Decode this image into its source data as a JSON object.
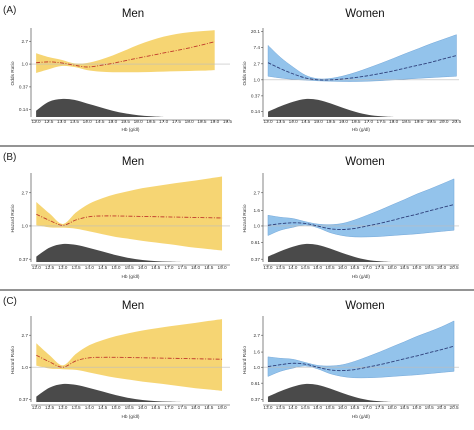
{
  "chart_data": [
    {
      "type": "line",
      "panel": "(A)",
      "title": "Men",
      "xlabel": "Hb (g/dl)",
      "ylabel": "Odds Ratio",
      "xlim": [
        11.8,
        19.6
      ],
      "ylim": [
        0.1,
        4.4
      ],
      "log_y": true,
      "yticks": [
        0.14,
        0.37,
        1.0,
        2.7
      ],
      "yticklabels": [
        "0.14",
        "0.37",
        "1.0",
        "2.7"
      ],
      "xticks": [
        12.0,
        12.5,
        13.0,
        13.5,
        14.0,
        14.5,
        15.0,
        15.5,
        16.0,
        16.5,
        17.0,
        17.5,
        18.0,
        18.5,
        19.0,
        19.5
      ],
      "xticklabels": [
        "12.0",
        "12.5",
        "13.0",
        "13.5",
        "14.0",
        "14.5",
        "15.0",
        "15.5",
        "16.0",
        "16.5",
        "17.0",
        "17.5",
        "18.0",
        "18.5",
        "19.0",
        "19.5"
      ],
      "x": [
        12.0,
        12.5,
        13.0,
        13.5,
        14.0,
        14.5,
        15.0,
        15.5,
        16.0,
        16.5,
        17.0,
        17.5,
        18.0,
        18.5,
        19.0
      ],
      "estimate": [
        1.06,
        1.1,
        1.05,
        0.95,
        0.88,
        0.94,
        1.03,
        1.16,
        1.3,
        1.45,
        1.62,
        1.8,
        2.02,
        2.3,
        2.65
      ],
      "lower": [
        0.68,
        0.8,
        0.92,
        0.88,
        0.77,
        0.72,
        0.7,
        0.7,
        0.7,
        0.71,
        0.72,
        0.73,
        0.74,
        0.75,
        0.77
      ],
      "upper": [
        1.6,
        1.35,
        1.2,
        1.03,
        1.05,
        1.2,
        1.45,
        1.82,
        2.3,
        2.8,
        3.3,
        3.7,
        4.0,
        4.2,
        4.35
      ],
      "density_x": [
        12.0,
        12.5,
        13.0,
        13.5,
        14.0,
        14.5,
        15.0,
        15.5,
        16.0,
        16.5,
        17.0
      ],
      "density": [
        0.35,
        0.85,
        1.0,
        0.95,
        0.75,
        0.55,
        0.35,
        0.2,
        0.1,
        0.04,
        0.0
      ]
    },
    {
      "type": "line",
      "panel": "(A)",
      "title": "Women",
      "xlabel": "Hb (g/dl)",
      "ylabel": "Odds Ratio",
      "xlim": [
        12.8,
        20.6
      ],
      "ylim": [
        0.1,
        22
      ],
      "log_y": true,
      "yticks": [
        0.14,
        0.37,
        1.0,
        2.7,
        7.4,
        20.1
      ],
      "yticklabels": [
        "0.14",
        "0.37",
        "1.0",
        "2.7",
        "7.4",
        "20.1"
      ],
      "xticks": [
        13.0,
        13.5,
        14.0,
        14.5,
        15.0,
        15.5,
        16.0,
        16.5,
        17.0,
        17.5,
        18.0,
        18.5,
        19.0,
        19.5,
        20.0,
        20.5
      ],
      "xticklabels": [
        "13.0",
        "13.5",
        "14.0",
        "14.5",
        "15.0",
        "15.5",
        "16.0",
        "16.5",
        "17.0",
        "17.5",
        "18.0",
        "18.5",
        "19.0",
        "19.5",
        "20.0",
        "20.5"
      ],
      "x": [
        13.0,
        13.5,
        14.0,
        14.5,
        15.0,
        15.5,
        16.0,
        16.5,
        17.0,
        17.5,
        18.0,
        18.5,
        19.0,
        19.5,
        20.0,
        20.5
      ],
      "estimate": [
        2.9,
        2.0,
        1.45,
        1.12,
        1.0,
        1.0,
        1.06,
        1.16,
        1.3,
        1.5,
        1.75,
        2.1,
        2.5,
        3.0,
        3.7,
        4.5
      ],
      "lower": [
        1.25,
        1.12,
        1.03,
        0.98,
        0.94,
        0.92,
        0.9,
        0.9,
        0.92,
        0.95,
        1.0,
        1.05,
        1.1,
        1.15,
        1.2,
        1.25
      ],
      "upper": [
        8.5,
        4.0,
        2.2,
        1.32,
        1.07,
        1.1,
        1.28,
        1.6,
        2.1,
        2.8,
        3.8,
        5.2,
        7.0,
        9.5,
        12.5,
        16.5
      ],
      "density_x": [
        13.0,
        13.5,
        14.0,
        14.5,
        15.0,
        15.5,
        16.0,
        16.5,
        17.0,
        17.5,
        18.0
      ],
      "density": [
        0.3,
        0.6,
        0.85,
        1.0,
        0.95,
        0.75,
        0.5,
        0.28,
        0.12,
        0.04,
        0.0
      ]
    },
    {
      "type": "line",
      "panel": "(B)",
      "title": "Men",
      "xlabel": "Hb (g/dl)",
      "ylabel": "Hazard Ratio",
      "xlim": [
        11.8,
        19.3
      ],
      "ylim": [
        0.34,
        4.6
      ],
      "log_y": true,
      "yticks": [
        0.37,
        1.0,
        2.7
      ],
      "yticklabels": [
        "0.37",
        "1.0",
        "2.7"
      ],
      "xticks": [
        12.0,
        12.5,
        13.0,
        13.5,
        14.0,
        14.5,
        15.0,
        15.5,
        16.0,
        16.5,
        17.0,
        17.5,
        18.0,
        18.5,
        19.0
      ],
      "xticklabels": [
        "12.0",
        "12.5",
        "13.0",
        "13.5",
        "14.0",
        "14.5",
        "15.0",
        "15.5",
        "16.0",
        "16.5",
        "17.0",
        "17.5",
        "18.0",
        "18.5",
        "19.0"
      ],
      "x": [
        12.0,
        12.5,
        13.0,
        13.5,
        14.0,
        14.5,
        15.0,
        15.5,
        16.0,
        16.5,
        17.0,
        17.5,
        18.0,
        18.5,
        19.0
      ],
      "estimate": [
        1.42,
        1.18,
        1.02,
        1.2,
        1.32,
        1.35,
        1.35,
        1.34,
        1.33,
        1.32,
        1.31,
        1.3,
        1.29,
        1.28,
        1.27
      ],
      "lower": [
        1.02,
        0.96,
        0.95,
        0.92,
        0.85,
        0.78,
        0.72,
        0.68,
        0.64,
        0.61,
        0.58,
        0.55,
        0.52,
        0.5,
        0.48
      ],
      "upper": [
        2.05,
        1.45,
        1.06,
        1.5,
        1.95,
        2.3,
        2.6,
        2.85,
        3.1,
        3.3,
        3.5,
        3.7,
        3.9,
        4.15,
        4.4
      ],
      "density_x": [
        12.0,
        12.5,
        13.0,
        13.5,
        14.0,
        14.5,
        15.0,
        15.5,
        16.0,
        16.5,
        17.0,
        17.5
      ],
      "density": [
        0.3,
        0.8,
        1.0,
        0.95,
        0.78,
        0.58,
        0.38,
        0.22,
        0.11,
        0.05,
        0.02,
        0.0
      ]
    },
    {
      "type": "line",
      "panel": "(B)",
      "title": "Women",
      "xlabel": "Hb (g/dl)",
      "ylabel": "Hazard Ratio",
      "xlim": [
        12.8,
        20.7
      ],
      "ylim": [
        0.34,
        4.6
      ],
      "log_y": true,
      "yticks": [
        0.37,
        0.61,
        1.0,
        1.6,
        2.7
      ],
      "yticklabels": [
        "0.37",
        "0.61",
        "1.0",
        "1.6",
        "2.7"
      ],
      "xticks": [
        13.0,
        13.5,
        14.0,
        14.5,
        15.0,
        15.5,
        16.0,
        16.5,
        17.0,
        17.5,
        18.0,
        18.5,
        19.0,
        19.5,
        20.0,
        20.5
      ],
      "xticklabels": [
        "13.0",
        "13.5",
        "14.0",
        "14.5",
        "15.0",
        "15.5",
        "16.0",
        "16.5",
        "17.0",
        "17.5",
        "18.0",
        "18.5",
        "19.0",
        "19.5",
        "20.0",
        "20.5"
      ],
      "x": [
        13.0,
        13.5,
        14.0,
        14.5,
        15.0,
        15.5,
        16.0,
        16.5,
        17.0,
        17.5,
        18.0,
        18.5,
        19.0,
        19.5,
        20.0,
        20.5
      ],
      "estimate": [
        1.02,
        1.07,
        1.1,
        1.08,
        1.0,
        0.92,
        0.9,
        0.93,
        1.0,
        1.08,
        1.18,
        1.3,
        1.42,
        1.57,
        1.73,
        1.9
      ],
      "lower": [
        0.75,
        0.88,
        0.96,
        1.03,
        0.95,
        0.82,
        0.75,
        0.72,
        0.72,
        0.73,
        0.75,
        0.77,
        0.79,
        0.82,
        0.85,
        0.88
      ],
      "upper": [
        1.38,
        1.3,
        1.25,
        1.14,
        1.06,
        1.04,
        1.08,
        1.2,
        1.38,
        1.6,
        1.88,
        2.2,
        2.6,
        3.0,
        3.5,
        4.1
      ],
      "density_x": [
        13.0,
        13.5,
        14.0,
        14.5,
        15.0,
        15.5,
        16.0,
        16.5,
        17.0,
        17.5,
        18.0
      ],
      "density": [
        0.3,
        0.6,
        0.85,
        1.0,
        0.95,
        0.75,
        0.5,
        0.28,
        0.12,
        0.04,
        0.0
      ]
    },
    {
      "type": "line",
      "panel": "(C)",
      "title": "Men",
      "xlabel": "Hb (g/dl)",
      "ylabel": "Hazard Ratio",
      "xlim": [
        11.8,
        19.3
      ],
      "ylim": [
        0.34,
        4.6
      ],
      "log_y": true,
      "yticks": [
        0.37,
        1.0,
        2.7
      ],
      "yticklabels": [
        "0.37",
        "1.0",
        "2.7"
      ],
      "xticks": [
        12.0,
        12.5,
        13.0,
        13.5,
        14.0,
        14.5,
        15.0,
        15.5,
        16.0,
        16.5,
        17.0,
        17.5,
        18.0,
        18.5,
        19.0
      ],
      "xticklabels": [
        "12.0",
        "12.5",
        "13.0",
        "13.5",
        "14.0",
        "14.5",
        "15.0",
        "15.5",
        "16.0",
        "16.5",
        "17.0",
        "17.5",
        "18.0",
        "18.5",
        "19.0"
      ],
      "x": [
        12.0,
        12.5,
        13.0,
        13.5,
        14.0,
        14.5,
        15.0,
        15.5,
        16.0,
        16.5,
        17.0,
        17.5,
        18.0,
        18.5,
        19.0
      ],
      "estimate": [
        1.45,
        1.18,
        1.0,
        1.22,
        1.34,
        1.36,
        1.36,
        1.35,
        1.34,
        1.33,
        1.32,
        1.31,
        1.3,
        1.29,
        1.28
      ],
      "lower": [
        1.05,
        0.96,
        0.94,
        0.92,
        0.85,
        0.78,
        0.72,
        0.68,
        0.64,
        0.61,
        0.58,
        0.55,
        0.52,
        0.5,
        0.48
      ],
      "upper": [
        2.1,
        1.45,
        1.06,
        1.52,
        1.98,
        2.32,
        2.62,
        2.88,
        3.12,
        3.33,
        3.55,
        3.75,
        3.95,
        4.2,
        4.45
      ],
      "density_x": [
        12.0,
        12.5,
        13.0,
        13.5,
        14.0,
        14.5,
        15.0,
        15.5,
        16.0,
        16.5,
        17.0,
        17.5
      ],
      "density": [
        0.3,
        0.8,
        1.0,
        0.95,
        0.78,
        0.58,
        0.38,
        0.22,
        0.11,
        0.05,
        0.02,
        0.0
      ]
    },
    {
      "type": "line",
      "panel": "(C)",
      "title": "Women",
      "xlabel": "Hb (g/dl)",
      "ylabel": "Hazard Ratio",
      "xlim": [
        12.8,
        20.7
      ],
      "ylim": [
        0.34,
        4.6
      ],
      "log_y": true,
      "yticks": [
        0.37,
        0.61,
        1.0,
        1.6,
        2.7
      ],
      "yticklabels": [
        "0.37",
        "0.61",
        "1.0",
        "1.6",
        "2.7"
      ],
      "xticks": [
        13.0,
        13.5,
        14.0,
        14.5,
        15.0,
        15.5,
        16.0,
        16.5,
        17.0,
        17.5,
        18.0,
        18.5,
        19.0,
        19.5,
        20.0,
        20.5
      ],
      "xticklabels": [
        "13.0",
        "13.5",
        "14.0",
        "14.5",
        "15.0",
        "15.5",
        "16.0",
        "16.5",
        "17.0",
        "17.5",
        "18.0",
        "18.5",
        "19.0",
        "19.5",
        "20.0",
        "20.5"
      ],
      "x": [
        13.0,
        13.5,
        14.0,
        14.5,
        15.0,
        15.5,
        16.0,
        16.5,
        17.0,
        17.5,
        18.0,
        18.5,
        19.0,
        19.5,
        20.0,
        20.5
      ],
      "estimate": [
        1.02,
        1.08,
        1.13,
        1.1,
        1.0,
        0.92,
        0.9,
        0.93,
        1.0,
        1.08,
        1.18,
        1.3,
        1.42,
        1.57,
        1.73,
        1.92
      ],
      "lower": [
        0.75,
        0.88,
        0.97,
        1.04,
        0.95,
        0.82,
        0.75,
        0.72,
        0.72,
        0.73,
        0.75,
        0.77,
        0.79,
        0.82,
        0.85,
        0.88
      ],
      "upper": [
        1.38,
        1.32,
        1.28,
        1.16,
        1.06,
        1.04,
        1.08,
        1.2,
        1.38,
        1.6,
        1.88,
        2.2,
        2.6,
        3.0,
        3.5,
        4.2
      ],
      "density_x": [
        13.0,
        13.5,
        14.0,
        14.5,
        15.0,
        15.5,
        16.0,
        16.5,
        17.0,
        17.5,
        18.0
      ],
      "density": [
        0.3,
        0.6,
        0.85,
        1.0,
        0.95,
        0.75,
        0.5,
        0.28,
        0.12,
        0.04,
        0.0
      ]
    }
  ],
  "panel_labels": [
    "(A)",
    "(B)",
    "(C)"
  ],
  "colors": {
    "men_band": "#f5d36b",
    "men_line": "#c0392b",
    "women_band": "#8ec0ea",
    "women_band_edge": "#5b95cf",
    "women_line": "#2e3f7a",
    "density": "#4a4a4a",
    "reference_line": "#bdbdbd",
    "separator": "#555555"
  }
}
